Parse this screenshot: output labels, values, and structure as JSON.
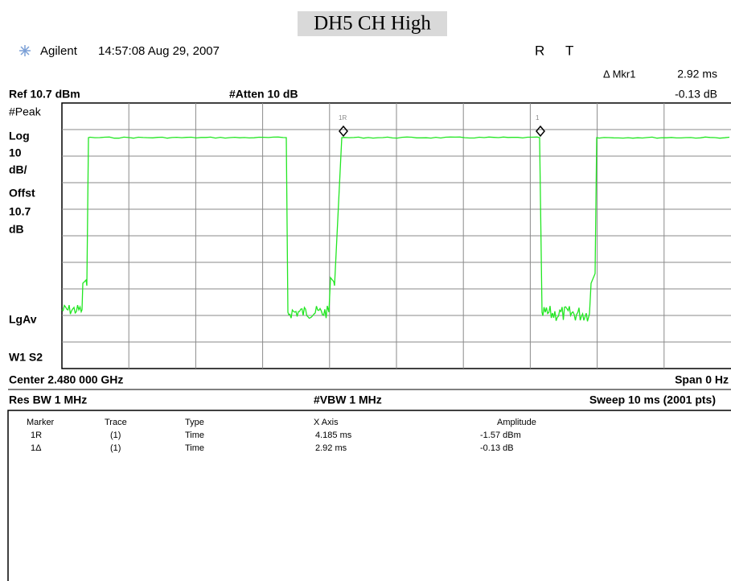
{
  "title": "DH5 CH High",
  "header": {
    "brand": "Agilent",
    "timestamp": "14:57:08  Aug 29, 2007",
    "status": [
      "R",
      "T"
    ],
    "marker_readout": {
      "label": "Δ Mkr1",
      "x": "2.92 ms",
      "y": "-0.13 dB"
    }
  },
  "settings": {
    "ref": "Ref 10.7 dBm",
    "atten": "#Atten 10 dB",
    "left": [
      "#Peak",
      "Log",
      "10",
      "dB/",
      "Offst",
      "10.7",
      "dB"
    ],
    "lgav": "LgAv",
    "w1s2": "W1  S2",
    "center": "Center 2.480 000 GHz",
    "span": "Span 0 Hz",
    "rbw": "Res BW 1 MHz",
    "vbw": "#VBW 1 MHz",
    "sweep": "Sweep 10 ms (2001 pts)"
  },
  "markers": [
    "1R",
    "1"
  ],
  "table": {
    "columns": [
      "Marker",
      "Trace",
      "Type",
      "X Axis",
      "Amplitude"
    ],
    "rows": [
      [
        "1R",
        "(1)",
        "Time",
        "4.185 ms",
        "-1.57 dBm"
      ],
      [
        "1Δ",
        "(1)",
        "Time",
        "2.92 ms",
        "-0.13 dB"
      ]
    ]
  }
}
